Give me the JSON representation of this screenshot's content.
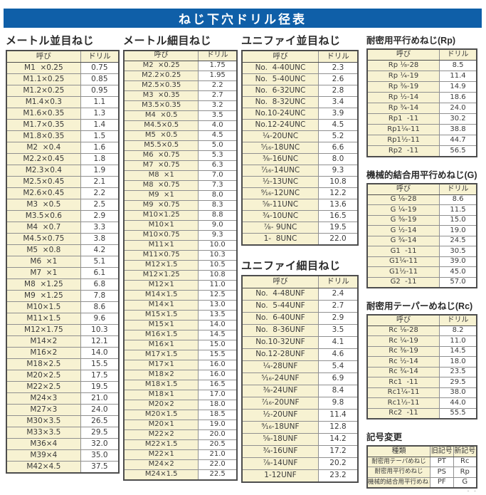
{
  "title": "ねじ下穴ドリル径表",
  "page_marker": "- -",
  "colors": {
    "accent_blue": "#0f5fa8",
    "header_cream": "#f7f2d2",
    "border_dark": "#4d4d4d",
    "border_light": "#909090",
    "text": "#3a3a3a"
  },
  "columns": [
    {
      "tables": [
        {
          "title": "メートル並目ねじ",
          "headers": [
            "呼び",
            "ドリル"
          ],
          "rows": [
            [
              "M1  ×0.25",
              "0.75"
            ],
            [
              "M1.1×0.25",
              "0.85"
            ],
            [
              "M1.2×0.25",
              "0.95"
            ],
            [
              "M1.4×0.3",
              "1.1"
            ],
            [
              "M1.6×0.35",
              "1.3"
            ],
            [
              "M1.7×0.35",
              "1.4"
            ],
            [
              "M1.8×0.35",
              "1.5"
            ],
            [
              "M2  ×0.4",
              "1.6"
            ],
            [
              "M2.2×0.45",
              "1.8"
            ],
            [
              "M2.3×0.4",
              "1.9"
            ],
            [
              "M2.5×0.45",
              "2.1"
            ],
            [
              "M2.6×0.45",
              "2.2"
            ],
            [
              "M3  ×0.5",
              "2.5"
            ],
            [
              "M3.5×0.6",
              "2.9"
            ],
            [
              "M4  ×0.7",
              "3.3"
            ],
            [
              "M4.5×0.75",
              "3.8"
            ],
            [
              "M5  ×0.8",
              "4.2"
            ],
            [
              "M6  ×1",
              "5.1"
            ],
            [
              "M7  ×1",
              "6.1"
            ],
            [
              "M8  ×1.25",
              "6.8"
            ],
            [
              "M9  ×1.25",
              "7.8"
            ],
            [
              "M10×1.5",
              "8.6"
            ],
            [
              "M11×1.5",
              "9.6"
            ],
            [
              "M12×1.75",
              "10.3"
            ],
            [
              "M14×2",
              "12.1"
            ],
            [
              "M16×2",
              "14.0"
            ],
            [
              "M18×2.5",
              "15.5"
            ],
            [
              "M20×2.5",
              "17.5"
            ],
            [
              "M22×2.5",
              "19.5"
            ],
            [
              "M24×3",
              "21.0"
            ],
            [
              "M27×3",
              "24.0"
            ],
            [
              "M30×3.5",
              "26.5"
            ],
            [
              "M33×3.5",
              "29.5"
            ],
            [
              "M36×4",
              "32.0"
            ],
            [
              "M39×4",
              "35.0"
            ],
            [
              "M42×4.5",
              "37.5"
            ]
          ]
        }
      ]
    },
    {
      "tables": [
        {
          "title": "メートル細目ねじ",
          "headers": [
            "呼び",
            "ドリル"
          ],
          "rows": [
            [
              "M2  ×0.25",
              "1.75"
            ],
            [
              "M2.2×0.25",
              "1.95"
            ],
            [
              "M2.5×0.35",
              "2.2"
            ],
            [
              "M3  ×0.35",
              "2.7"
            ],
            [
              "M3.5×0.35",
              "3.2"
            ],
            [
              "M4  ×0.5",
              "3.5"
            ],
            [
              "M4.5×0.5",
              "4.0"
            ],
            [
              "M5  ×0.5",
              "4.5"
            ],
            [
              "M5.5×0.5",
              "5.0"
            ],
            [
              "M6  ×0.75",
              "5.3"
            ],
            [
              "M7  ×0.75",
              "6.3"
            ],
            [
              "M8  ×1",
              "7.0"
            ],
            [
              "M8  ×0.75",
              "7.3"
            ],
            [
              "M9  ×1",
              "8.0"
            ],
            [
              "M9  ×0.75",
              "8.3"
            ],
            [
              "M10×1.25",
              "8.8"
            ],
            [
              "M10×1",
              "9.0"
            ],
            [
              "M10×0.75",
              "9.3"
            ],
            [
              "M11×1",
              "10.0"
            ],
            [
              "M11×0.75",
              "10.3"
            ],
            [
              "M12×1.5",
              "10.5"
            ],
            [
              "M12×1.25",
              "10.8"
            ],
            [
              "M12×1",
              "11.0"
            ],
            [
              "M14×1.5",
              "12.5"
            ],
            [
              "M14×1",
              "13.0"
            ],
            [
              "M15×1.5",
              "13.5"
            ],
            [
              "M15×1",
              "14.0"
            ],
            [
              "M16×1.5",
              "14.5"
            ],
            [
              "M16×1",
              "15.0"
            ],
            [
              "M17×1.5",
              "15.5"
            ],
            [
              "M17×1",
              "16.0"
            ],
            [
              "M18×2",
              "16.0"
            ],
            [
              "M18×1.5",
              "16.5"
            ],
            [
              "M18×1",
              "17.0"
            ],
            [
              "M20×2",
              "18.0"
            ],
            [
              "M20×1.5",
              "18.5"
            ],
            [
              "M20×1",
              "19.0"
            ],
            [
              "M22×2",
              "20.0"
            ],
            [
              "M22×1.5",
              "20.5"
            ],
            [
              "M22×1",
              "21.0"
            ],
            [
              "M24×2",
              "22.0"
            ],
            [
              "M24×1.5",
              "22.5"
            ]
          ]
        }
      ]
    },
    {
      "tables": [
        {
          "title": "ユニファイ並目ねじ",
          "headers": [
            "呼び",
            "ドリル"
          ],
          "rows": [
            [
              "No.  4-40UNC",
              "2.3"
            ],
            [
              "No.  5-40UNC",
              "2.6"
            ],
            [
              "No.  6-32UNC",
              "2.8"
            ],
            [
              "No.  8-32UNC",
              "3.4"
            ],
            [
              "No.10-24UNC",
              "3.9"
            ],
            [
              "No.12-24UNC",
              "4.5"
            ],
            [
              "¹⁄₄-20UNC",
              "5.2"
            ],
            [
              "⁵⁄₁₆-18UNC",
              "6.6"
            ],
            [
              "³⁄₈-16UNC",
              "8.0"
            ],
            [
              "⁷⁄₁₆-14UNC",
              "9.3"
            ],
            [
              "¹⁄₂-13UNC",
              "10.8"
            ],
            [
              "⁹⁄₁₆-12UNC",
              "12.2"
            ],
            [
              "⁵⁄₈-11UNC",
              "13.6"
            ],
            [
              "³⁄₄-10UNC",
              "16.5"
            ],
            [
              "⁷⁄₈- 9UNC",
              "19.5"
            ],
            [
              "1-  8UNC",
              "22.0"
            ]
          ]
        },
        {
          "title": "ユニファイ細目ねじ",
          "headers": [
            "呼び",
            "ドリル"
          ],
          "rows": [
            [
              "No.  4-48UNF",
              "2.4"
            ],
            [
              "No.  5-44UNF",
              "2.7"
            ],
            [
              "No.  6-40UNF",
              "2.9"
            ],
            [
              "No.  8-36UNF",
              "3.5"
            ],
            [
              "No.10-32UNF",
              "4.1"
            ],
            [
              "No.12-28UNF",
              "4.6"
            ],
            [
              "¹⁄₄-28UNF",
              "5.4"
            ],
            [
              "⁵⁄₁₆-24UNF",
              "6.9"
            ],
            [
              "³⁄₈-24UNF",
              "8.4"
            ],
            [
              "⁷⁄₁₆-20UNF",
              "9.8"
            ],
            [
              "¹⁄₂-20UNF",
              "11.4"
            ],
            [
              "⁹⁄₁₆-18UNF",
              "12.8"
            ],
            [
              "⁵⁄₈-18UNF",
              "14.2"
            ],
            [
              "³⁄₄-16UNF",
              "17.2"
            ],
            [
              "⁷⁄₈-14UNF",
              "20.2"
            ],
            [
              "1-12UNF",
              "23.2"
            ]
          ]
        }
      ]
    },
    {
      "tables": [
        {
          "title": "耐密用平行めねじ(Rp)",
          "headers": [
            "呼び",
            "ドリル"
          ],
          "rows": [
            [
              "Rp ¹⁄₈-28",
              "8.5"
            ],
            [
              "Rp ¹⁄₄-19",
              "11.4"
            ],
            [
              "Rp ³⁄₈-19",
              "14.9"
            ],
            [
              "Rp ¹⁄₂-14",
              "18.6"
            ],
            [
              "Rp ³⁄₄-14",
              "24.0"
            ],
            [
              "Rp1  -11",
              "30.2"
            ],
            [
              "Rp1¹⁄₄-11",
              "38.8"
            ],
            [
              "Rp1¹⁄₂-11",
              "44.7"
            ],
            [
              "Rp2  -11",
              "56.5"
            ]
          ]
        },
        {
          "title": "機械的結合用平行めねじ(G)",
          "headers": [
            "呼び",
            "ドリル"
          ],
          "rows": [
            [
              "G ¹⁄₈-28",
              "8.6"
            ],
            [
              "G ¹⁄₄-19",
              "11.5"
            ],
            [
              "G ³⁄₈-19",
              "15.0"
            ],
            [
              "G ¹⁄₂-14",
              "19.0"
            ],
            [
              "G ³⁄₄-14",
              "24.5"
            ],
            [
              "G1  -11",
              "30.5"
            ],
            [
              "G1¹⁄₄-11",
              "39.0"
            ],
            [
              "G1¹⁄₂-11",
              "45.0"
            ],
            [
              "G2  -11",
              "57.0"
            ]
          ]
        },
        {
          "title": "耐密用テーパーめねじ(Rc)",
          "headers": [
            "呼び",
            "ドリル"
          ],
          "rows": [
            [
              "Rc ¹⁄₈-28",
              "8.2"
            ],
            [
              "Rc ¹⁄₄-19",
              "11.0"
            ],
            [
              "Rc ³⁄₈-19",
              "14.5"
            ],
            [
              "Rc ¹⁄₂-14",
              "18.0"
            ],
            [
              "Rc ³⁄₄-14",
              "23.5"
            ],
            [
              "Rc1  -11",
              "29.5"
            ],
            [
              "Rc1¹⁄₄-11",
              "38.0"
            ],
            [
              "Rc1¹⁄₂-11",
              "44.0"
            ],
            [
              "Rc2  -11",
              "55.5"
            ]
          ]
        },
        {
          "title": "記号変更",
          "headers": [
            "種類",
            "旧記号",
            "新記号"
          ],
          "rows": [
            [
              "耐密用テーパめねじ",
              "PT",
              "Rc"
            ],
            [
              "耐密用平行めねじ",
              "PS",
              "Rp"
            ],
            [
              "機械的結合用平行めねじ",
              "PF",
              "G"
            ]
          ]
        }
      ]
    }
  ]
}
